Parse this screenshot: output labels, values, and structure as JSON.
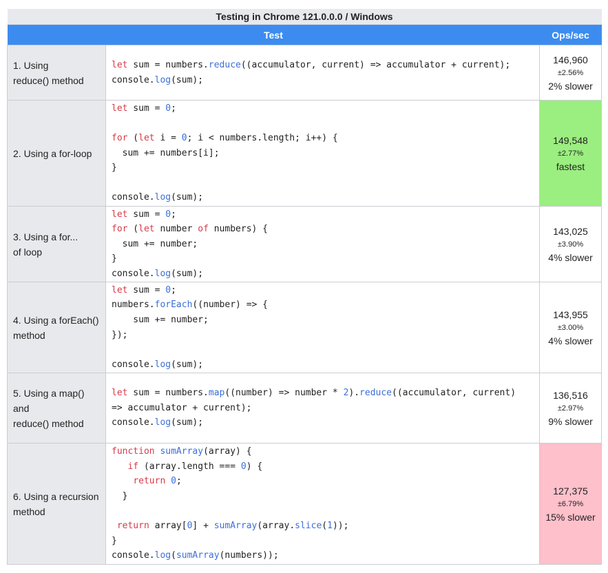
{
  "title": "Testing in Chrome 121.0.0.0 / Windows",
  "columns": {
    "test": "Test",
    "ops": "Ops/sec"
  },
  "rows": [
    {
      "name_lines": [
        "1. Using",
        "reduce() method"
      ],
      "ops": "146,960",
      "pm": "±2.56%",
      "rel": "2% slower"
    },
    {
      "name_lines": [
        "2. Using a for-loop"
      ],
      "ops": "149,548",
      "pm": "±2.77%",
      "rel": "fastest"
    },
    {
      "name_lines": [
        "3. Using a for...",
        "of loop"
      ],
      "ops": "143,025",
      "pm": "±3.90%",
      "rel": "4% slower"
    },
    {
      "name_lines": [
        "4. Using a forEach()",
        "method"
      ],
      "ops": "143,955",
      "pm": "±3.00%",
      "rel": "4% slower"
    },
    {
      "name_lines": [
        "5. Using a map()",
        "and",
        "reduce() method"
      ],
      "ops": "136,516",
      "pm": "±2.97%",
      "rel": "9% slower"
    },
    {
      "name_lines": [
        "6. Using a recursion",
        "method"
      ],
      "ops": "127,375",
      "pm": "±6.79%",
      "rel": "15% slower"
    }
  ],
  "highlight": {
    "fastest_color": "#9bee80",
    "slowest_color": "#fec0cb",
    "header_color": "#3c8cf0"
  }
}
